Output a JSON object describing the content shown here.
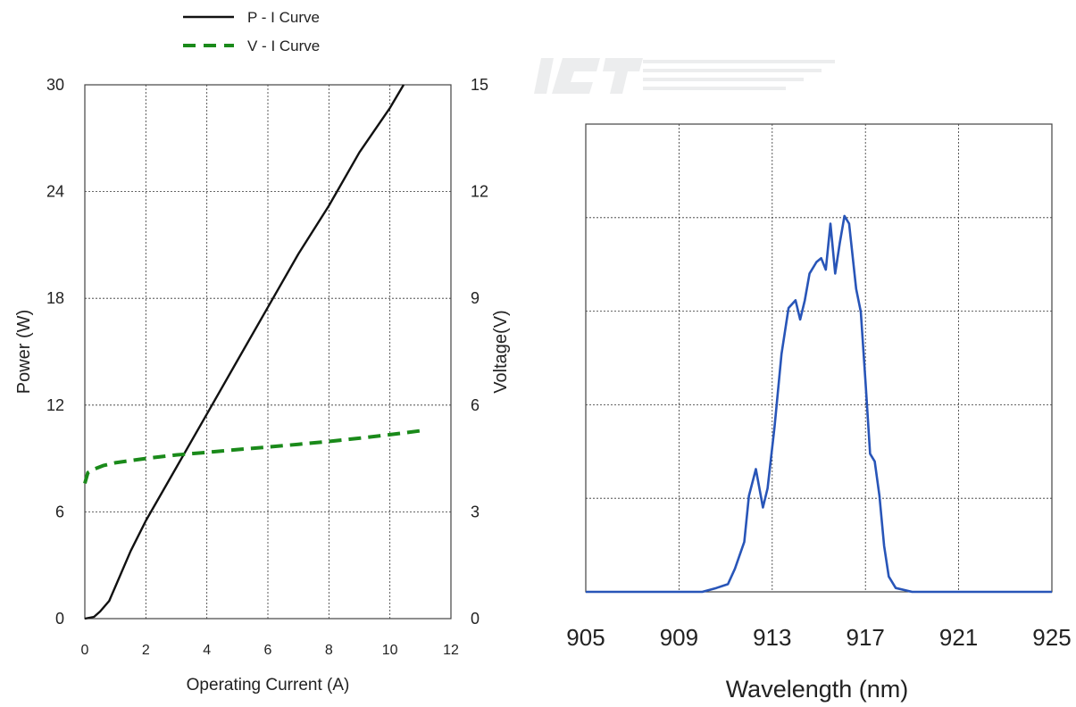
{
  "chart_data": [
    {
      "type": "line",
      "title": "",
      "legend": {
        "placement": "top-left, outside plot",
        "entries": [
          {
            "label": "P - I Curve",
            "style": "solid",
            "color": "#111111"
          },
          {
            "label": "V - I Curve",
            "style": "dashed",
            "color": "#1a8a1a"
          }
        ]
      },
      "xlabel": "Operating Current (A)",
      "ylabel_left": "Power (W)",
      "ylabel_right": "Voltage(V)",
      "xlim": [
        0,
        12
      ],
      "ylim_left": [
        0,
        30
      ],
      "ylim_right": [
        0,
        15
      ],
      "xticks": [
        "0",
        "2",
        "4",
        "6",
        "8",
        "10",
        "12"
      ],
      "yticks_left": [
        "0",
        "6",
        "12",
        "18",
        "24",
        "30"
      ],
      "yticks_right": [
        "0",
        "3",
        "6",
        "9",
        "12",
        "15"
      ],
      "grid": true,
      "series": [
        {
          "name": "P - I Curve",
          "axis": "left",
          "color": "#111111",
          "dash": "solid",
          "x": [
            0,
            0.3,
            0.5,
            0.8,
            1.0,
            1.5,
            2.0,
            3.0,
            4.0,
            5.0,
            6.0,
            7.0,
            8.0,
            9.0,
            10.0,
            11.0,
            11.4
          ],
          "y": [
            0,
            0.1,
            0.4,
            1.0,
            1.8,
            3.8,
            5.5,
            8.5,
            11.5,
            14.5,
            17.5,
            20.5,
            23.2,
            26.2,
            28.7,
            31.6,
            32.3
          ]
        },
        {
          "name": "V - I Curve",
          "axis": "right",
          "color": "#1a8a1a",
          "dash": "dashed",
          "x": [
            0,
            0.1,
            0.3,
            0.6,
            1.0,
            2.0,
            3.0,
            4.0,
            5.0,
            6.0,
            7.0,
            8.0,
            9.0,
            10.0,
            11.2
          ],
          "y": [
            3.8,
            4.1,
            4.2,
            4.3,
            4.38,
            4.5,
            4.6,
            4.67,
            4.75,
            4.82,
            4.9,
            4.98,
            5.07,
            5.17,
            5.3
          ]
        }
      ]
    },
    {
      "type": "line",
      "title": "",
      "xlabel": "Wavelength (nm)",
      "ylabel": "",
      "xlim": [
        905,
        925
      ],
      "ylim": [
        0,
        1
      ],
      "xticks": [
        "905",
        "909",
        "913",
        "917",
        "921",
        "925"
      ],
      "grid": true,
      "series": [
        {
          "color": "#2855b8",
          "x": [
            905,
            906,
            908,
            910,
            910.6,
            911.1,
            911.4,
            911.8,
            912.0,
            912.3,
            912.6,
            912.8,
            913.1,
            913.4,
            913.7,
            914.0,
            914.2,
            914.4,
            914.6,
            914.9,
            915.1,
            915.3,
            915.5,
            915.7,
            915.9,
            916.1,
            916.3,
            916.6,
            916.8,
            917.0,
            917.2,
            917.4,
            917.6,
            917.8,
            918.0,
            918.3,
            919.0,
            921,
            925
          ],
          "y": [
            0.0,
            0.0,
            0.0,
            0.0,
            0.01,
            0.02,
            0.06,
            0.13,
            0.25,
            0.32,
            0.22,
            0.27,
            0.43,
            0.62,
            0.74,
            0.76,
            0.71,
            0.76,
            0.83,
            0.86,
            0.87,
            0.84,
            0.96,
            0.83,
            0.91,
            0.98,
            0.96,
            0.79,
            0.73,
            0.55,
            0.36,
            0.34,
            0.25,
            0.12,
            0.04,
            0.01,
            0.0,
            0.0,
            0.0
          ]
        }
      ]
    }
  ]
}
